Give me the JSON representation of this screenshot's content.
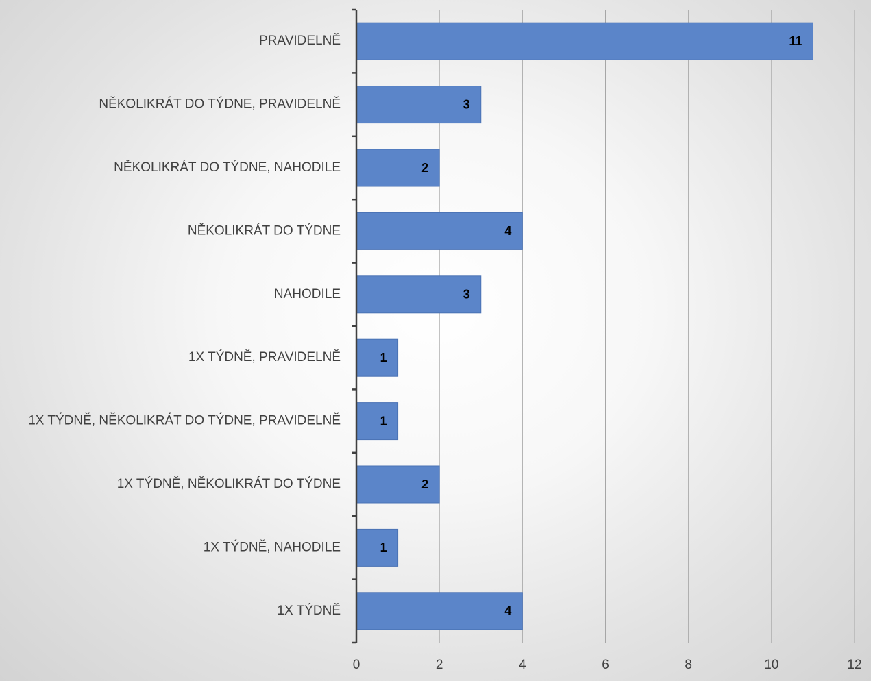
{
  "chart_data": {
    "type": "bar",
    "orientation": "horizontal",
    "categories": [
      "PRAVIDELNĚ",
      "NĚKOLIKRÁT DO TÝDNE, PRAVIDELNĚ",
      "NĚKOLIKRÁT DO TÝDNE, NAHODILE",
      "NĚKOLIKRÁT DO TÝDNE",
      "NAHODILE",
      "1X TÝDNĚ, PRAVIDELNĚ",
      "1X TÝDNĚ, NĚKOLIKRÁT DO TÝDNE, PRAVIDELNĚ",
      "1X TÝDNĚ, NĚKOLIKRÁT DO TÝDNE",
      "1X TÝDNĚ, NAHODILE",
      "1X TÝDNĚ"
    ],
    "values": [
      11,
      3,
      2,
      4,
      3,
      1,
      1,
      2,
      1,
      4
    ],
    "xlim": [
      0,
      12
    ],
    "xticks": [
      "0",
      "2",
      "4",
      "6",
      "8",
      "10",
      "12"
    ],
    "title": "",
    "xlabel": "",
    "ylabel": "",
    "grid": "vertical",
    "legend": "none",
    "data_labels": true,
    "colors": {
      "bar": "#5b85c9",
      "bar_stroke": "#4a72b5",
      "grid": "#a6a6a6",
      "axis": "#404040",
      "label_text": "#404040",
      "data_label_text": "#000000"
    }
  }
}
